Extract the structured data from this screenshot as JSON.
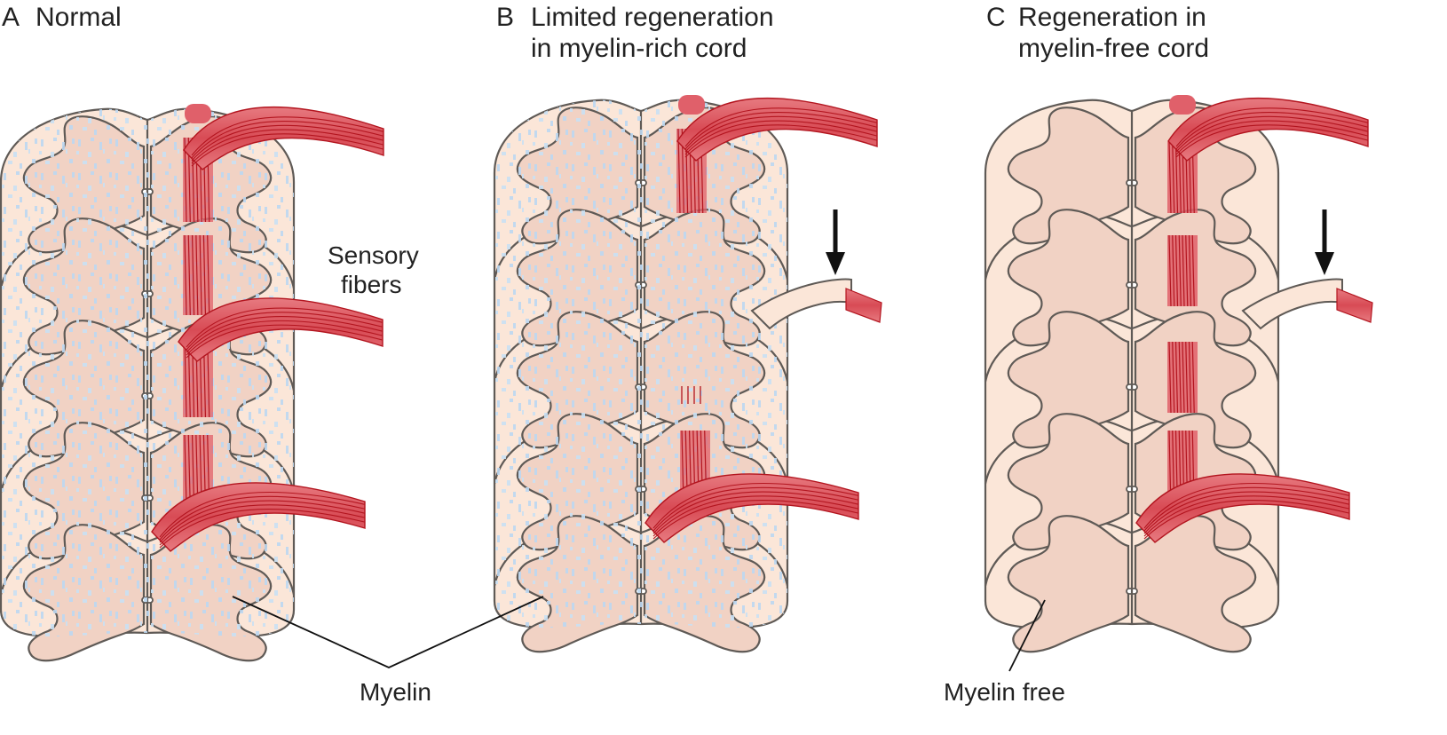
{
  "colors": {
    "white_matter": "#fbe6d8",
    "gray_matter": "#f1d2c4",
    "outline": "#5f5a56",
    "nerve": "#e0606a",
    "nerve_dark": "#b3151f",
    "myelin_speck": "#bcd8f1",
    "arrow": "#111111"
  },
  "panels": [
    {
      "letter": "A",
      "title_lines": [
        "Normal"
      ],
      "myelin": true,
      "regeneration": "full"
    },
    {
      "letter": "B",
      "title_lines": [
        "Limited regeneration",
        "in myelin-rich cord"
      ],
      "myelin": true,
      "regeneration": "limited"
    },
    {
      "letter": "C",
      "title_lines": [
        "Regeneration in",
        "myelin-free cord"
      ],
      "myelin": false,
      "regeneration": "extensive"
    }
  ],
  "labels": {
    "sensory_fibers": [
      "Sensory",
      "fibers"
    ],
    "myelin": "Myelin",
    "myelin_free": "Myelin free"
  },
  "icons": {
    "lesion_arrow": "down-arrow-icon"
  }
}
